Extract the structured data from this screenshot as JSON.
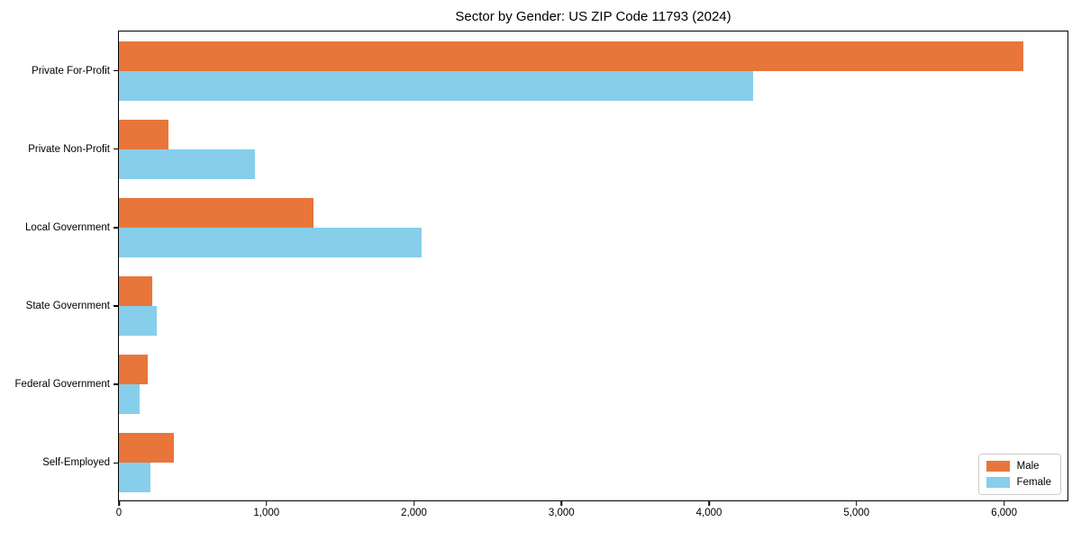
{
  "title": "Sector by Gender: US ZIP Code 11793 (2024)",
  "colors": {
    "male": "#E8763B",
    "female": "#87CEEB",
    "axis": "#000000",
    "legend_border": "#cccccc",
    "background": "#ffffff"
  },
  "legend": {
    "position": "lower right",
    "items": [
      {
        "label": "Male",
        "color_key": "male"
      },
      {
        "label": "Female",
        "color_key": "female"
      }
    ]
  },
  "chart_data": {
    "type": "bar",
    "orientation": "horizontal",
    "title": "Sector by Gender: US ZIP Code 11793 (2024)",
    "xlabel": "",
    "ylabel": "",
    "categories": [
      "Private For-Profit",
      "Private Non-Profit",
      "Local Government",
      "State Government",
      "Federal Government",
      "Self-Employed"
    ],
    "series": [
      {
        "name": "Male",
        "color_key": "male",
        "values": [
          6130,
          335,
          1320,
          225,
          195,
          370
        ]
      },
      {
        "name": "Female",
        "color_key": "female",
        "values": [
          4300,
          920,
          2050,
          255,
          140,
          215
        ]
      }
    ],
    "xlim": [
      0,
      6430
    ],
    "xticks": [
      0,
      1000,
      2000,
      3000,
      4000,
      5000,
      6000
    ],
    "xtick_labels": [
      "0",
      "1,000",
      "2,000",
      "3,000",
      "4,000",
      "5,000",
      "6,000"
    ],
    "grid": false,
    "legend_position": "lower right"
  }
}
